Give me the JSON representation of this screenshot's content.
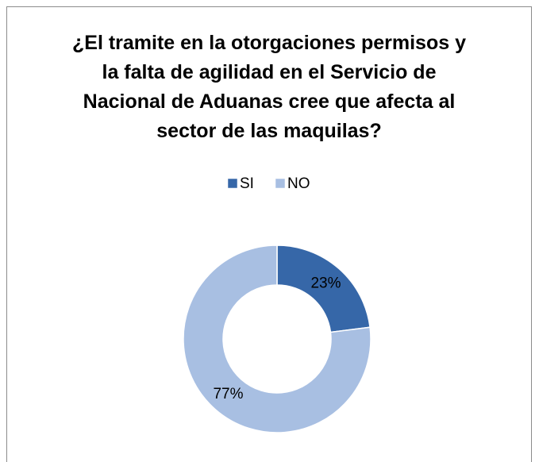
{
  "chart_data": {
    "type": "donut",
    "title": "¿El tramite en la otorgaciones permisos y la falta de agilidad en el Servicio de Nacional de Aduanas cree que afecta al sector de las maquilas?",
    "categories": [
      "SI",
      "NO"
    ],
    "values": [
      23,
      77
    ],
    "value_labels": [
      "23%",
      "77%"
    ],
    "colors": [
      "#3667a8",
      "#a8bfe2"
    ],
    "legend": "top"
  }
}
